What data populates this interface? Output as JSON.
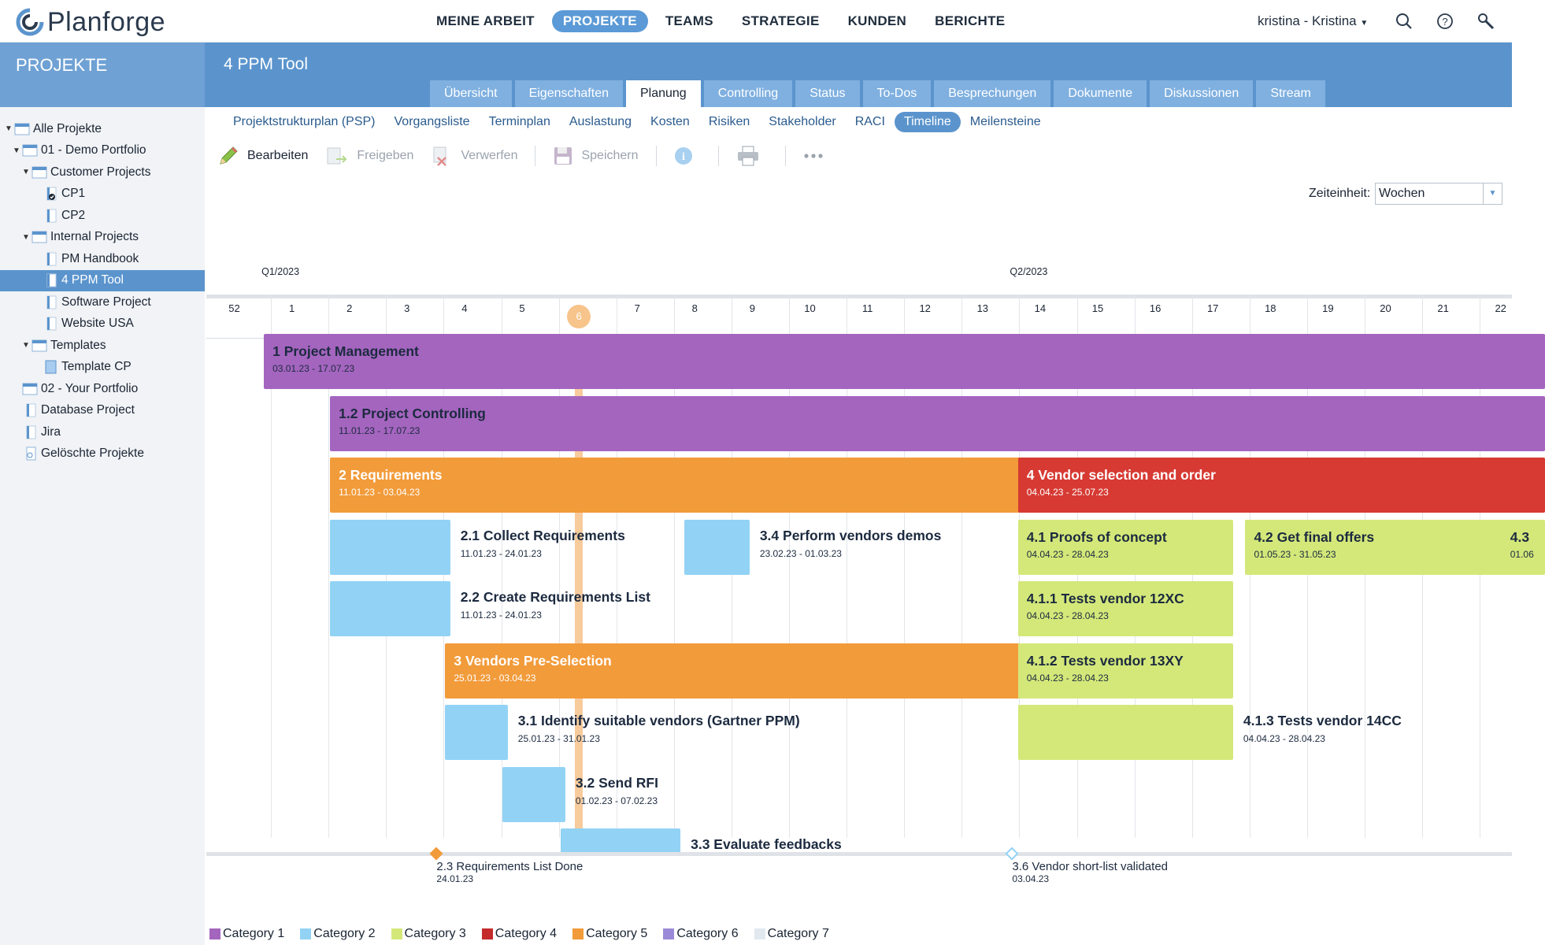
{
  "app": {
    "name": "Planforge"
  },
  "nav": {
    "items": [
      "MEINE ARBEIT",
      "PROJEKTE",
      "TEAMS",
      "STRATEGIE",
      "KUNDEN",
      "BERICHTE"
    ],
    "active": "PROJEKTE"
  },
  "user": {
    "label": "kristina - Kristina"
  },
  "sidebar": {
    "title": "PROJEKTE",
    "tree": [
      {
        "label": "Alle Projekte",
        "level": 0,
        "expand": "open",
        "icon": "portfolio-icon"
      },
      {
        "label": "01 - Demo Portfolio",
        "level": 1,
        "expand": "open",
        "icon": "portfolio-icon"
      },
      {
        "label": "Customer Projects",
        "level": 2,
        "expand": "open",
        "icon": "portfolio-icon"
      },
      {
        "label": "CP1",
        "level": 3,
        "expand": "none",
        "icon": "project-done-icon"
      },
      {
        "label": "CP2",
        "level": 3,
        "expand": "none",
        "icon": "project-icon"
      },
      {
        "label": "Internal Projects",
        "level": 2,
        "expand": "open",
        "icon": "portfolio-icon"
      },
      {
        "label": "PM Handbook",
        "level": 3,
        "expand": "none",
        "icon": "project-icon"
      },
      {
        "label": "4 PPM Tool",
        "level": 3,
        "expand": "none",
        "icon": "project-icon",
        "selected": true
      },
      {
        "label": "Software Project",
        "level": 3,
        "expand": "none",
        "icon": "project-icon"
      },
      {
        "label": "Website USA",
        "level": 3,
        "expand": "none",
        "icon": "project-icon"
      },
      {
        "label": "Templates",
        "level": 2,
        "expand": "open",
        "icon": "portfolio-icon"
      },
      {
        "label": "Template CP",
        "level": 3,
        "expand": "none",
        "icon": "template-icon"
      },
      {
        "label": "02 - Your Portfolio",
        "level": 1,
        "expand": "none",
        "icon": "portfolio-icon"
      },
      {
        "label": "Database Project",
        "level": 1,
        "expand": "none",
        "icon": "project-icon"
      },
      {
        "label": "Jira",
        "level": 1,
        "expand": "none",
        "icon": "project-icon"
      },
      {
        "label": "Gelöschte Projekte",
        "level": 1,
        "expand": "none",
        "icon": "trash-icon"
      }
    ]
  },
  "project": {
    "title": "4 PPM Tool"
  },
  "tabs": [
    "Übersicht",
    "Eigenschaften",
    "Planung",
    "Controlling",
    "Status",
    "To-Dos",
    "Besprechungen",
    "Dokumente",
    "Diskussionen",
    "Stream"
  ],
  "tabs_active": "Planung",
  "subtabs": [
    "Projektstrukturplan (PSP)",
    "Vorgangsliste",
    "Terminplan",
    "Auslastung",
    "Kosten",
    "Risiken",
    "Stakeholder",
    "RACI",
    "Timeline",
    "Meilensteine"
  ],
  "subtabs_active": "Timeline",
  "toolbar": {
    "edit": "Bearbeiten",
    "release": "Freigeben",
    "discard": "Verwerfen",
    "save": "Speichern"
  },
  "zeiteinheit": {
    "label": "Zeiteinheit:",
    "value": "Wochen"
  },
  "timeline": {
    "quarters": [
      {
        "label": "Q1/2023",
        "week": 1
      },
      {
        "label": "Q2/2023",
        "week": 14
      }
    ],
    "weeks": [
      "52",
      "1",
      "2",
      "3",
      "4",
      "5",
      "6",
      "7",
      "8",
      "9",
      "10",
      "11",
      "12",
      "13",
      "14",
      "15",
      "16",
      "17",
      "18",
      "19",
      "20",
      "21",
      "22"
    ],
    "current_week": "6",
    "bars": [
      {
        "title": "1 Project Management",
        "dates": "03.01.23 - 17.07.23",
        "category": 6,
        "row": 0,
        "start": 1,
        "end": 29,
        "label": "inside"
      },
      {
        "title": "1.2 Project Controlling",
        "dates": "11.01.23 - 17.07.23",
        "category": 6,
        "row": 1,
        "start": 2.15,
        "end": 29,
        "label": "inside"
      },
      {
        "title": "2 Requirements",
        "dates": "11.01.23 - 03.04.23",
        "category": 5,
        "row": 2,
        "start": 2.15,
        "end": 14,
        "label": "inside"
      },
      {
        "title": "4 Vendor selection and order",
        "dates": "04.04.23 - 25.07.23",
        "category": 4,
        "row": 2,
        "start": 14.1,
        "end": 29,
        "label": "inside"
      },
      {
        "title": "2.1 Collect Requirements",
        "dates": "11.01.23 - 24.01.23",
        "category": 2,
        "row": 3,
        "start": 2.15,
        "end": 4.1,
        "label": "outside"
      },
      {
        "title": "3.4 Perform vendors demos",
        "dates": "23.02.23 - 01.03.23",
        "category": 2,
        "row": 3,
        "start": 8.3,
        "end": 9.3,
        "label": "outside"
      },
      {
        "title": "4.1 Proofs of concept",
        "dates": "04.04.23 - 28.04.23",
        "category": 3,
        "row": 3,
        "start": 14.1,
        "end": 17.7,
        "label": "inside"
      },
      {
        "title": "4.2 Get final offers",
        "dates": "01.05.23 - 31.05.23",
        "category": 3,
        "row": 3,
        "start": 18.05,
        "end": 22.45,
        "label": "inside"
      },
      {
        "title": "4.3",
        "dates": "01.06",
        "category": 3,
        "row": 3,
        "start": 22.5,
        "end": 29,
        "label": "inside"
      },
      {
        "title": "2.2 Create Requirements List",
        "dates": "11.01.23 - 24.01.23",
        "category": 2,
        "row": 4,
        "start": 2.15,
        "end": 4.1,
        "label": "outside"
      },
      {
        "title": "4.1.1 Tests vendor 12XC",
        "dates": "04.04.23 - 28.04.23",
        "category": 3,
        "row": 4,
        "start": 14.1,
        "end": 17.7,
        "label": "inside"
      },
      {
        "title": "3 Vendors Pre-Selection",
        "dates": "25.01.23 - 03.04.23",
        "category": 5,
        "row": 5,
        "start": 4.15,
        "end": 14,
        "label": "inside"
      },
      {
        "title": "4.1.2 Tests vendor 13XY",
        "dates": "04.04.23 - 28.04.23",
        "category": 3,
        "row": 5,
        "start": 14.1,
        "end": 17.7,
        "label": "inside"
      },
      {
        "title": "3.1 Identify suitable vendors (Gartner PPM)",
        "dates": "25.01.23 - 31.01.23",
        "category": 2,
        "row": 6,
        "start": 4.15,
        "end": 5.1,
        "label": "outside"
      },
      {
        "title": "4.1.3 Tests vendor 14CC",
        "dates": "04.04.23 - 28.04.23",
        "category": 3,
        "row": 6,
        "start": 14.1,
        "end": 17.7,
        "label": "outside"
      },
      {
        "title": "3.2 Send RFI",
        "dates": "01.02.23 - 07.02.23",
        "category": 2,
        "row": 7,
        "start": 5.15,
        "end": 6.1,
        "label": "outside"
      },
      {
        "title": "3.3 Evaluate feedbacks",
        "dates": "",
        "category": 2,
        "row": 8,
        "start": 6.15,
        "end": 8.1,
        "label": "outside"
      }
    ],
    "milestones": [
      {
        "title": "2.3 Requirements List Done",
        "date": "24.01.23",
        "week": 4,
        "style": "filled",
        "color": "#f29b3a"
      },
      {
        "title": "3.6 Vendor short-list validated",
        "date": "03.04.23",
        "week": 14,
        "style": "hollow",
        "color": "#92d3f5"
      }
    ]
  },
  "legend": [
    {
      "label": "Category 1",
      "color": "#a465bf"
    },
    {
      "label": "Category 2",
      "color": "#92d3f5"
    },
    {
      "label": "Category 3",
      "color": "#d4e87a"
    },
    {
      "label": "Category 4",
      "color": "#c42b2b"
    },
    {
      "label": "Category 5",
      "color": "#f29b3a"
    },
    {
      "label": "Category 6",
      "color": "#9b8ad8"
    },
    {
      "label": "Category 7",
      "color": "#e2e8f0"
    }
  ],
  "colors": {
    "c2": "#92d3f5",
    "c3": "#d4e87a",
    "c4": "#d63a33",
    "c5": "#f29b3a",
    "c6": "#a465bf"
  }
}
